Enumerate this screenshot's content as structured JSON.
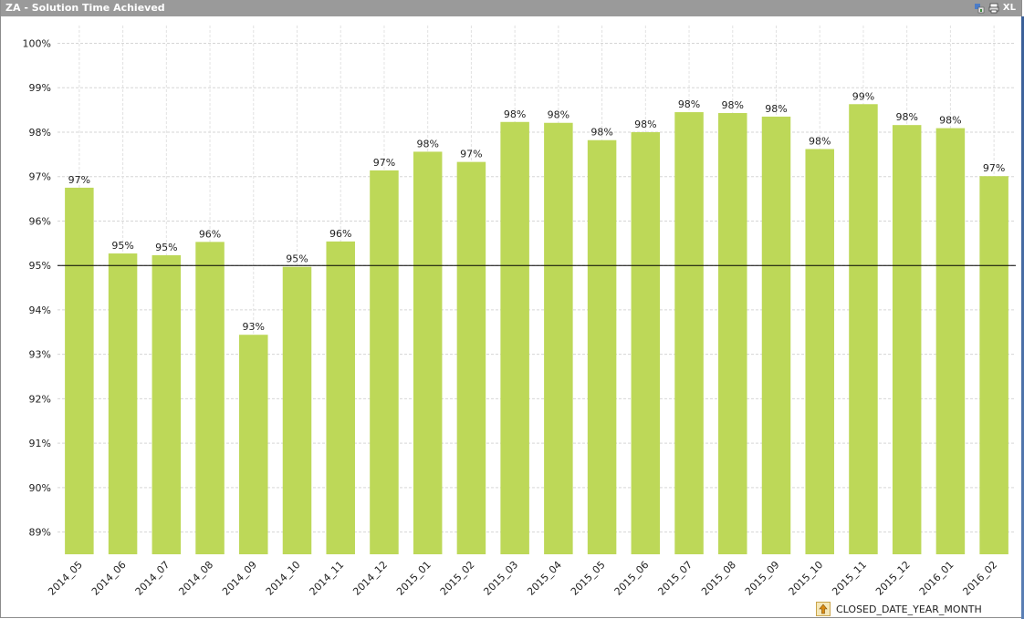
{
  "window": {
    "title": "ZA - Solution Time Achieved",
    "xl_label": "XL"
  },
  "chart_data": {
    "type": "bar",
    "title": "ZA - Solution Time Achieved",
    "xlabel": "CLOSED_DATE_YEAR_MONTH",
    "ylabel": "",
    "ylim": [
      88.5,
      100.4
    ],
    "yticks": [
      89,
      90,
      91,
      92,
      93,
      94,
      95,
      96,
      97,
      98,
      99,
      100
    ],
    "ytick_labels": [
      "89%",
      "90%",
      "91%",
      "92%",
      "93%",
      "94%",
      "95%",
      "96%",
      "97%",
      "98%",
      "99%",
      "100%"
    ],
    "grid": true,
    "reference_line": 95,
    "bar_color": "#bdd858",
    "categories": [
      "2014_05",
      "2014_06",
      "2014_07",
      "2014_08",
      "2014_09",
      "2014_10",
      "2014_11",
      "2014_12",
      "2015_01",
      "2015_02",
      "2015_03",
      "2015_04",
      "2015_05",
      "2015_06",
      "2015_07",
      "2015_08",
      "2015_09",
      "2015_10",
      "2015_11",
      "2015_12",
      "2016_01",
      "2016_02"
    ],
    "values": [
      96.75,
      95.27,
      95.23,
      95.53,
      93.44,
      94.97,
      95.54,
      97.14,
      97.56,
      97.33,
      98.23,
      98.21,
      97.82,
      98.0,
      98.45,
      98.43,
      98.35,
      97.62,
      98.63,
      98.16,
      98.09,
      97.01
    ],
    "data_labels": [
      "97%",
      "95%",
      "95%",
      "96%",
      "93%",
      "95%",
      "96%",
      "97%",
      "98%",
      "97%",
      "98%",
      "98%",
      "98%",
      "98%",
      "98%",
      "98%",
      "98%",
      "98%",
      "99%",
      "98%",
      "98%",
      "97%"
    ]
  }
}
